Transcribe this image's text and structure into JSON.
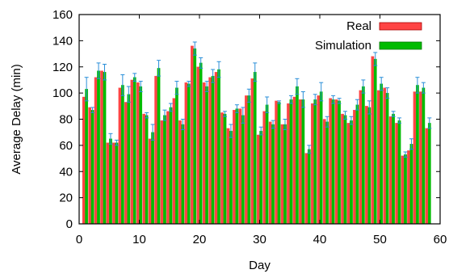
{
  "chart_data": {
    "type": "bar",
    "title": "",
    "xlabel": "Day",
    "ylabel": "Average Delay (min)",
    "xlim": [
      0,
      60
    ],
    "ylim": [
      0,
      160
    ],
    "x_ticks": [
      "0",
      "10",
      "20",
      "30",
      "40",
      "50",
      "60"
    ],
    "y_ticks": [
      "0",
      "20",
      "40",
      "60",
      "80",
      "100",
      "120",
      "140",
      "160"
    ],
    "grid": false,
    "legend_position": "top-right",
    "x": [
      1,
      2,
      3,
      4,
      5,
      6,
      7,
      8,
      9,
      10,
      11,
      12,
      13,
      14,
      15,
      16,
      17,
      18,
      19,
      20,
      21,
      22,
      23,
      24,
      25,
      26,
      27,
      28,
      29,
      30,
      31,
      32,
      33,
      34,
      35,
      36,
      37,
      38,
      39,
      40,
      41,
      42,
      43,
      44,
      45,
      46,
      47,
      48,
      49,
      50,
      51,
      52,
      53,
      54,
      55,
      56,
      57,
      58
    ],
    "series": [
      {
        "name": "Real",
        "color": "#ff4444",
        "values": [
          97,
          89,
          112,
          117,
          62,
          62,
          104,
          93,
          110,
          108,
          84,
          65,
          113,
          79,
          86,
          96,
          79,
          108,
          136,
          120,
          108,
          112,
          116,
          85,
          73,
          87,
          88,
          98,
          111,
          68,
          86,
          78,
          94,
          76,
          92,
          97,
          95,
          54,
          92,
          98,
          80,
          96,
          95,
          84,
          77,
          87,
          102,
          90,
          128,
          102,
          104,
          82,
          77,
          52,
          56,
          101,
          101,
          73
        ],
        "errors": [
          0,
          0,
          0,
          0,
          0,
          0,
          0,
          0,
          0,
          0,
          0,
          0,
          0,
          0,
          0,
          0,
          0,
          0,
          0,
          0,
          0,
          0,
          0,
          0,
          0,
          0,
          0,
          0,
          0,
          0,
          0,
          0,
          0,
          0,
          0,
          0,
          0,
          0,
          0,
          0,
          0,
          0,
          0,
          0,
          0,
          0,
          0,
          0,
          0,
          0,
          0,
          0,
          0,
          0,
          0,
          0,
          0,
          0
        ]
      },
      {
        "name": "Simulation",
        "color": "#00bb00",
        "values": [
          103,
          87,
          117,
          116,
          65,
          62,
          106,
          99,
          112,
          105,
          83,
          70,
          119,
          83,
          89,
          104,
          76,
          107,
          134,
          123,
          105,
          113,
          118,
          84,
          71,
          88,
          83,
          98,
          116,
          71,
          91,
          76,
          93,
          76,
          95,
          105,
          95,
          57,
          95,
          101,
          78,
          95,
          94,
          83,
          79,
          91,
          105,
          89,
          126,
          107,
          100,
          84,
          79,
          53,
          61,
          106,
          104,
          77
        ],
        "errors": [
          9,
          2,
          6,
          6,
          4,
          2,
          8,
          6,
          3,
          4,
          2,
          6,
          6,
          4,
          3,
          5,
          4,
          2,
          5,
          4,
          4,
          5,
          6,
          2,
          5,
          3,
          6,
          5,
          7,
          3,
          6,
          3,
          1,
          4,
          3,
          6,
          6,
          3,
          4,
          7,
          4,
          3,
          2,
          3,
          3,
          4,
          5,
          5,
          5,
          5,
          4,
          2,
          2,
          2,
          4,
          6,
          4,
          4
        ]
      }
    ]
  }
}
